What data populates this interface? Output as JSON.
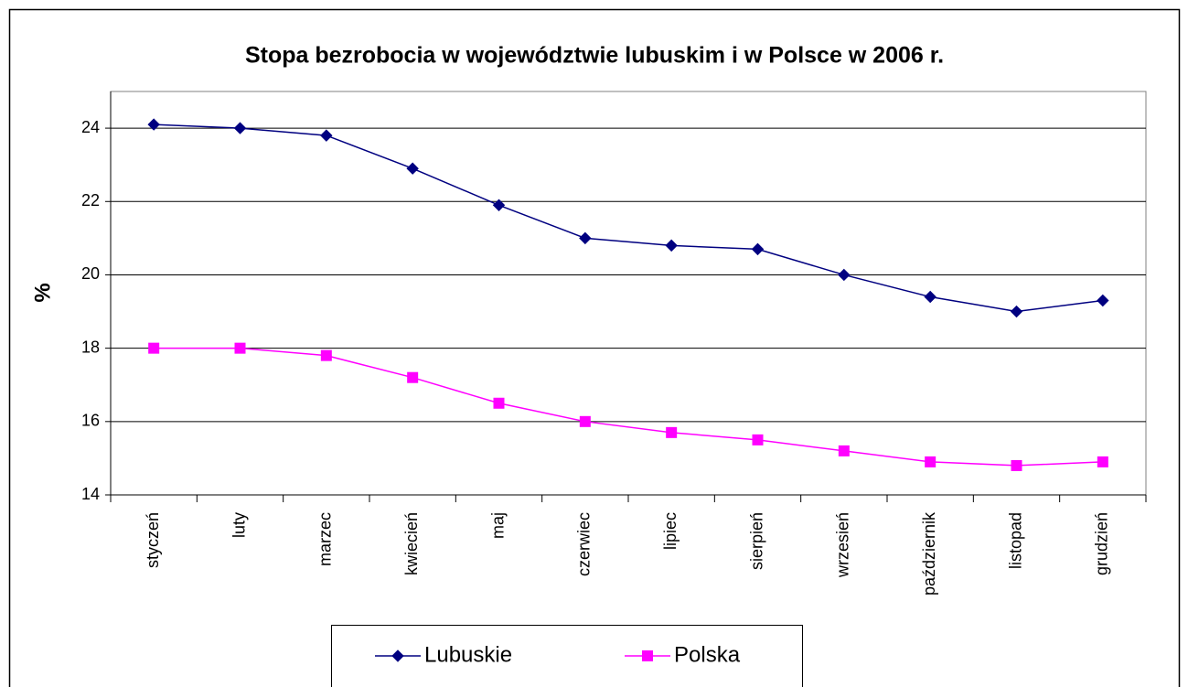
{
  "chart_data": {
    "type": "line",
    "title": "Stopa bezrobocia w województwie lubuskim i w Polsce w 2006 r.",
    "ylabel": "%",
    "categories": [
      "styczeń",
      "luty",
      "marzec",
      "kwiecień",
      "maj",
      "czerwiec",
      "lipiec",
      "sierpień",
      "wrzesień",
      "październik",
      "listopad",
      "grudzień"
    ],
    "series": [
      {
        "name": "Lubuskie",
        "color": "#000080",
        "marker": "diamond",
        "values": [
          24.1,
          24.0,
          23.8,
          22.9,
          21.9,
          21.0,
          20.8,
          20.7,
          20.0,
          19.4,
          19.0,
          19.3
        ]
      },
      {
        "name": "Polska",
        "color": "#ff00ff",
        "marker": "square",
        "values": [
          18.0,
          18.0,
          17.8,
          17.2,
          16.5,
          16.0,
          15.7,
          15.5,
          15.2,
          14.9,
          14.8,
          14.9
        ]
      }
    ],
    "ylim": [
      14,
      25
    ],
    "yticks": [
      14,
      16,
      18,
      20,
      22,
      24
    ],
    "grid": true
  }
}
